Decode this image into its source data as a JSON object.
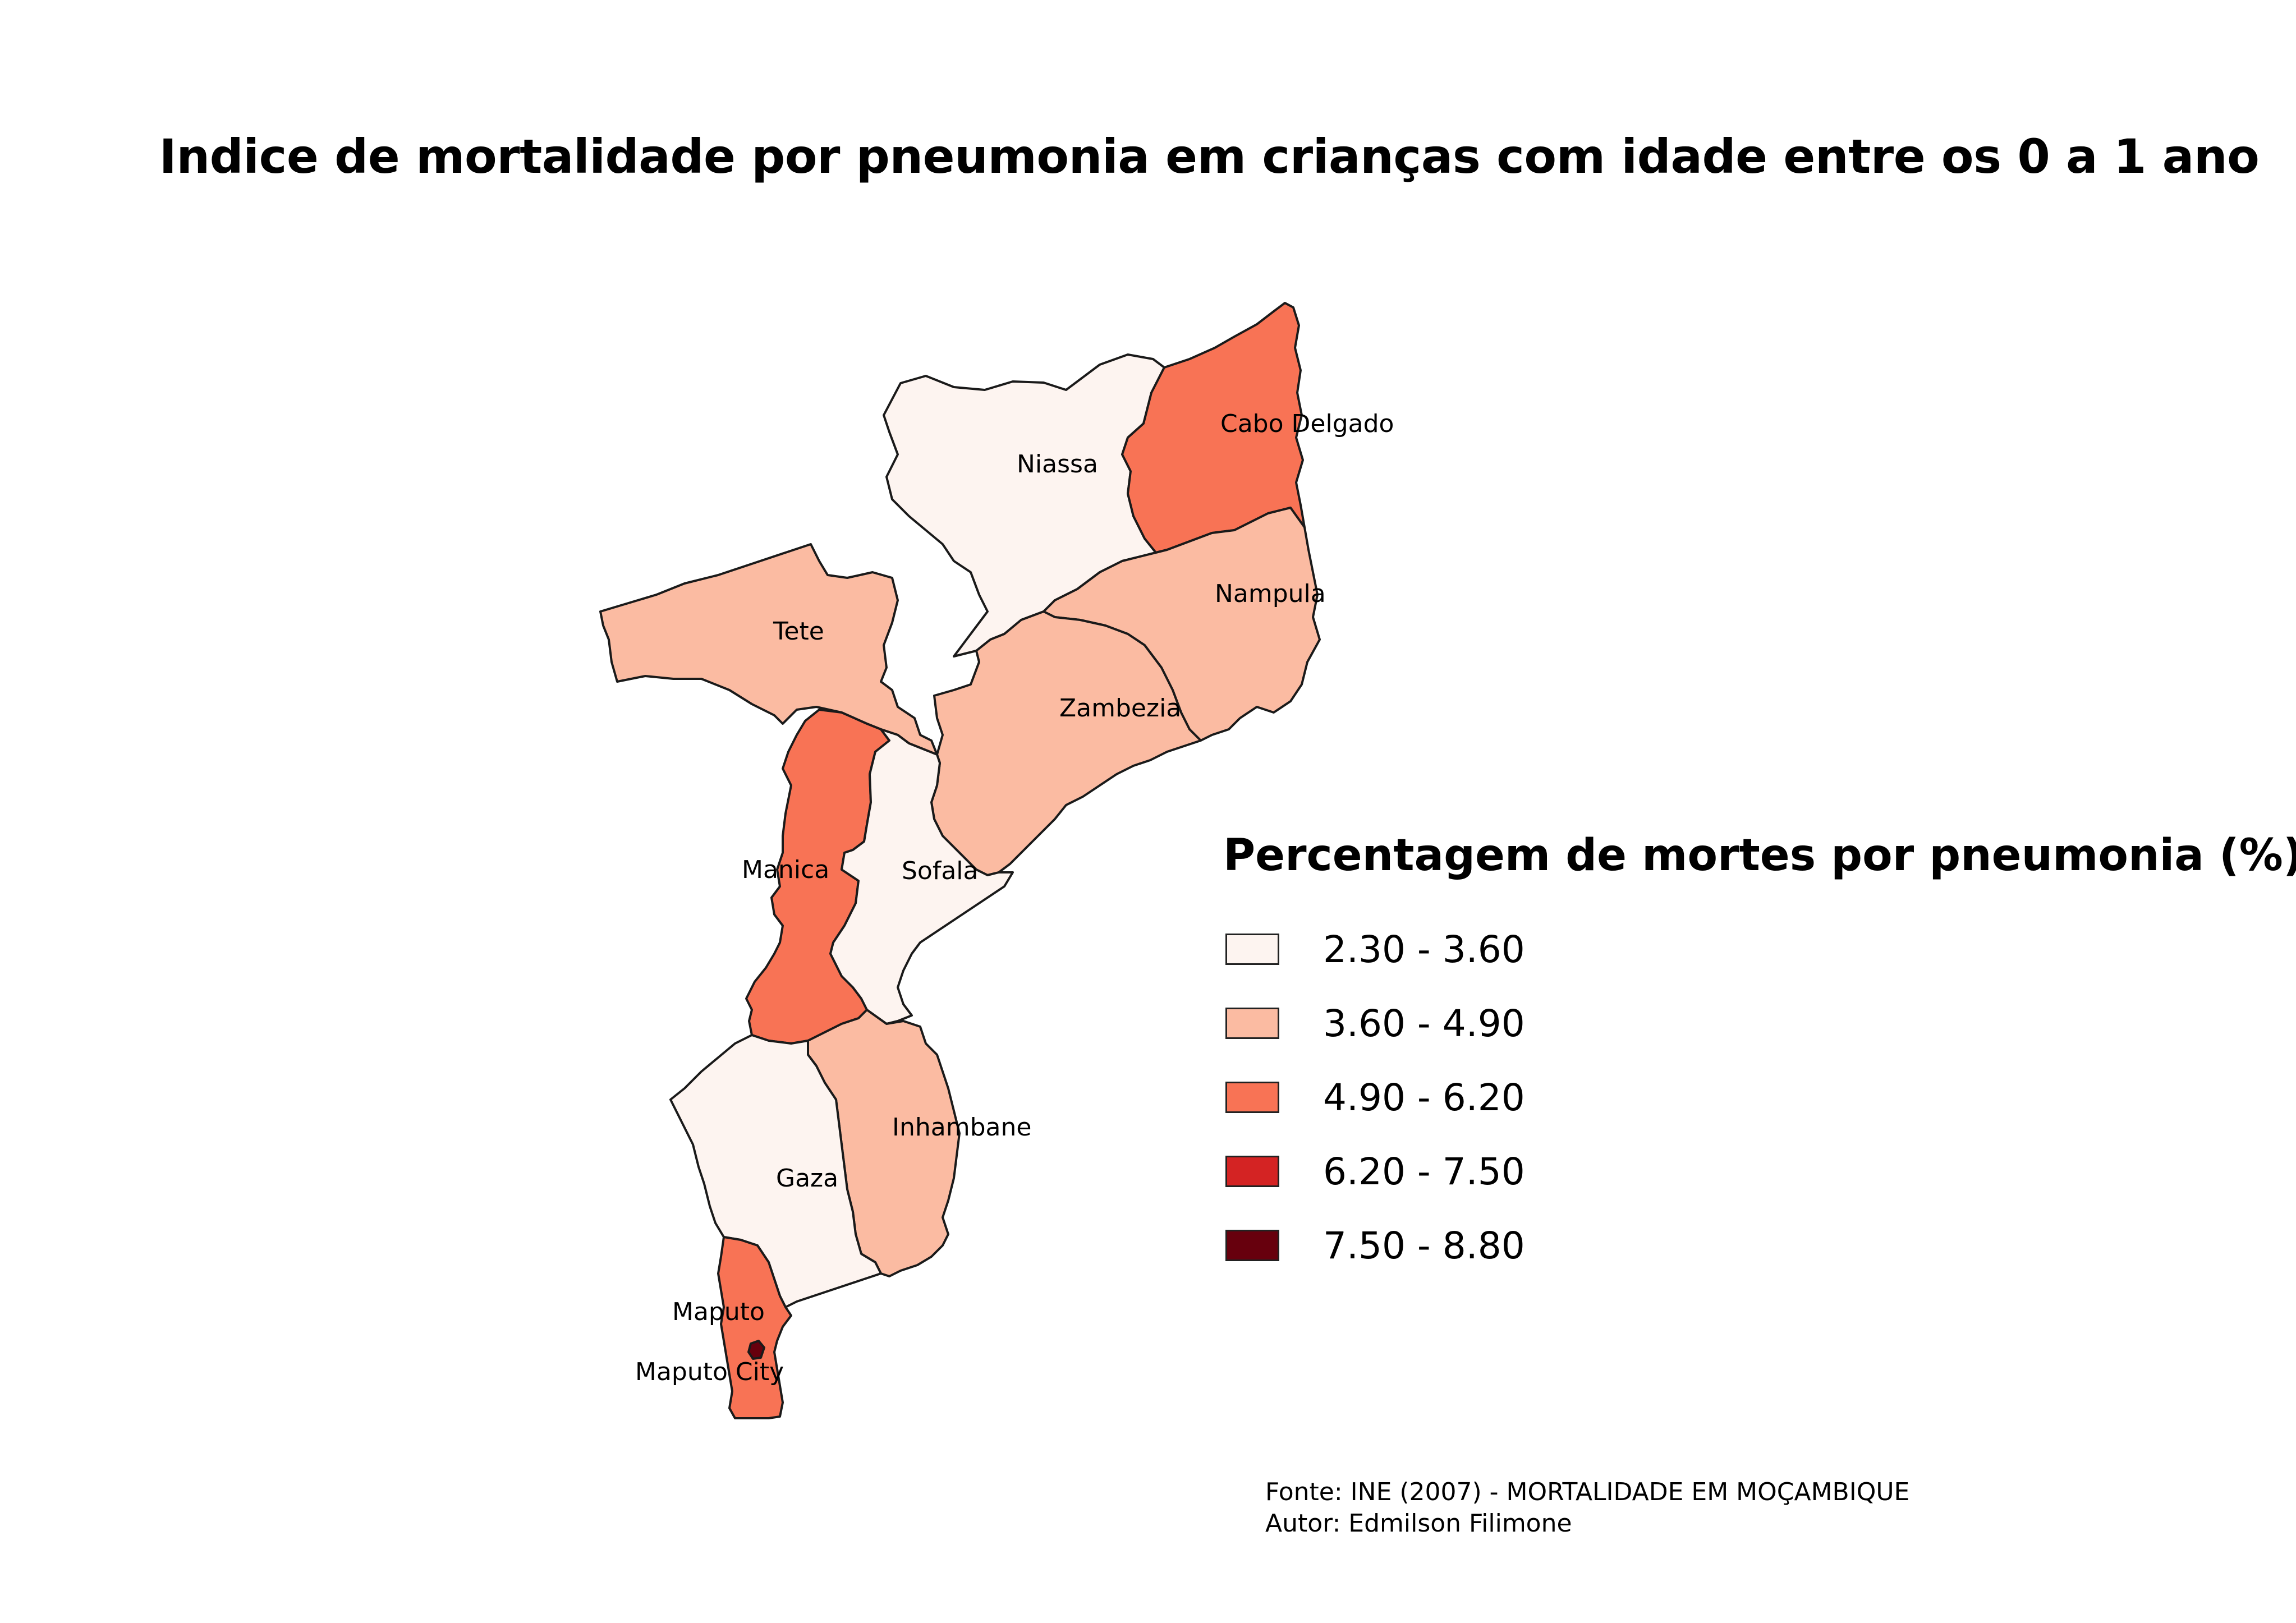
{
  "title": "Indice de mortalidade por pneumonia em crianças com idade entre os 0 a 1 ano",
  "legend": {
    "title": "Percentagem de mortes por pneumonia (%)",
    "classes": [
      {
        "label": "2.30 - 3.60",
        "color": "#fdf4f0"
      },
      {
        "label": "3.60 - 4.90",
        "color": "#fbbba2"
      },
      {
        "label": "4.90 - 6.20",
        "color": "#f87355"
      },
      {
        "label": "6.20 - 7.50",
        "color": "#d42323"
      },
      {
        "label": "7.50 - 8.80",
        "color": "#67000d"
      }
    ]
  },
  "provinces": [
    {
      "id": "niassa",
      "name": "Niassa",
      "class": 0
    },
    {
      "id": "cabo-delgado",
      "name": "Cabo Delgado",
      "class": 2
    },
    {
      "id": "nampula",
      "name": "Nampula",
      "class": 1
    },
    {
      "id": "tete",
      "name": "Tete",
      "class": 1
    },
    {
      "id": "zambezia",
      "name": "Zambezia",
      "class": 1
    },
    {
      "id": "manica",
      "name": "Manica",
      "class": 2
    },
    {
      "id": "sofala",
      "name": "Sofala",
      "class": 0
    },
    {
      "id": "inhambane",
      "name": "Inhambane",
      "class": 1
    },
    {
      "id": "gaza",
      "name": "Gaza",
      "class": 0
    },
    {
      "id": "maputo",
      "name": "Maputo",
      "class": 2
    },
    {
      "id": "maputo-city",
      "name": "Maputo City",
      "class": 4
    }
  ],
  "credits": {
    "source": "Fonte: INE (2007) - MORTALIDADE EM MOÇAMBIQUE",
    "author": "Autor: Edmilson Filimone"
  }
}
